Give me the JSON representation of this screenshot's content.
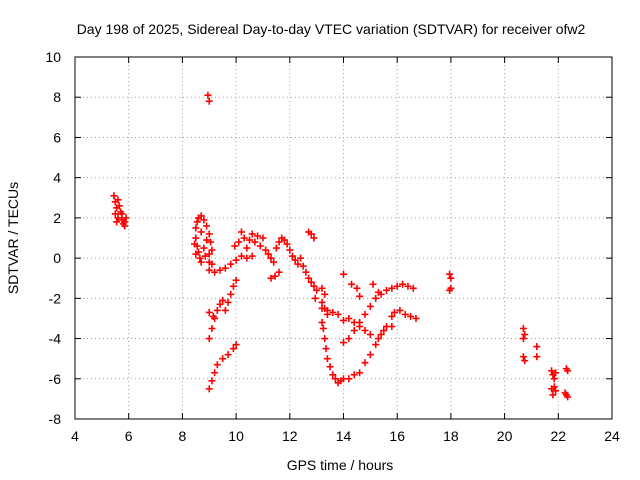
{
  "chart_data": {
    "type": "scatter",
    "title": "Day 198 of 2025, Sidereal Day-to-day VTEC variation (SDTVAR) for receiver ofw2",
    "xlabel": "GPS time / hours",
    "ylabel": "SDTVAR / TECUs",
    "xlim": [
      4,
      24
    ],
    "ylim": [
      -8,
      10
    ],
    "xticks": [
      4,
      6,
      8,
      10,
      12,
      14,
      16,
      18,
      20,
      22,
      24
    ],
    "yticks": [
      -8,
      -6,
      -4,
      -2,
      0,
      2,
      4,
      6,
      8,
      10
    ],
    "grid": true,
    "marker": "+",
    "color": "#ff0000",
    "series": [
      {
        "name": "SDTVAR",
        "points": [
          [
            5.45,
            3.1
          ],
          [
            5.5,
            2.8
          ],
          [
            5.55,
            2.5
          ],
          [
            5.5,
            2.2
          ],
          [
            5.6,
            2.0
          ],
          [
            5.55,
            1.8
          ],
          [
            5.7,
            2.3
          ],
          [
            5.75,
            1.9
          ],
          [
            5.8,
            1.7
          ],
          [
            5.85,
            1.6
          ],
          [
            5.9,
            2.0
          ],
          [
            5.65,
            2.6
          ],
          [
            5.6,
            2.9
          ],
          [
            5.75,
            2.2
          ],
          [
            5.85,
            1.8
          ],
          [
            8.95,
            8.1
          ],
          [
            9.0,
            7.8
          ],
          [
            8.5,
            1.5
          ],
          [
            8.55,
            1.8
          ],
          [
            8.6,
            2.0
          ],
          [
            8.7,
            2.1
          ],
          [
            8.8,
            1.9
          ],
          [
            8.9,
            1.6
          ],
          [
            9.0,
            1.2
          ],
          [
            9.05,
            0.8
          ],
          [
            9.1,
            0.4
          ],
          [
            8.5,
            1.0
          ],
          [
            8.55,
            0.6
          ],
          [
            8.6,
            0.3
          ],
          [
            8.65,
            0.0
          ],
          [
            8.7,
            -0.2
          ],
          [
            8.8,
            0.5
          ],
          [
            8.9,
            0.9
          ],
          [
            9.0,
            0.2
          ],
          [
            9.1,
            -0.3
          ],
          [
            8.5,
            0.2
          ],
          [
            8.45,
            0.7
          ],
          [
            8.7,
            1.3
          ],
          [
            8.85,
            0.1
          ],
          [
            9.0,
            -0.2
          ],
          [
            9.0,
            -0.6
          ],
          [
            9.2,
            -0.7
          ],
          [
            9.4,
            -0.6
          ],
          [
            9.6,
            -0.5
          ],
          [
            9.8,
            -0.3
          ],
          [
            10.0,
            -0.1
          ],
          [
            10.2,
            0.1
          ],
          [
            10.4,
            0.0
          ],
          [
            10.6,
            0.1
          ],
          [
            9.95,
            0.6
          ],
          [
            10.1,
            0.8
          ],
          [
            10.2,
            1.3
          ],
          [
            10.3,
            1.0
          ],
          [
            10.4,
            0.5
          ],
          [
            10.5,
            0.9
          ],
          [
            10.6,
            1.2
          ],
          [
            10.7,
            0.8
          ],
          [
            10.8,
            1.1
          ],
          [
            10.9,
            0.6
          ],
          [
            11.0,
            1.0
          ],
          [
            11.1,
            0.4
          ],
          [
            11.2,
            0.2
          ],
          [
            11.3,
            0.0
          ],
          [
            11.4,
            -0.2
          ],
          [
            11.5,
            0.5
          ],
          [
            11.6,
            0.8
          ],
          [
            11.7,
            1.0
          ],
          [
            11.8,
            0.9
          ],
          [
            11.9,
            0.7
          ],
          [
            12.0,
            0.4
          ],
          [
            12.1,
            0.1
          ],
          [
            12.2,
            -0.1
          ],
          [
            12.3,
            -0.3
          ],
          [
            12.4,
            0.0
          ],
          [
            12.5,
            -0.4
          ],
          [
            12.6,
            -0.7
          ],
          [
            12.7,
            -1.0
          ],
          [
            12.8,
            -1.2
          ],
          [
            12.9,
            -1.4
          ],
          [
            13.0,
            -1.6
          ],
          [
            11.3,
            -1.0
          ],
          [
            11.45,
            -0.9
          ],
          [
            11.6,
            -0.7
          ],
          [
            12.7,
            1.3
          ],
          [
            12.8,
            1.2
          ],
          [
            12.9,
            1.0
          ],
          [
            12.95,
            -2.0
          ],
          [
            9.0,
            -4.0
          ],
          [
            9.1,
            -3.5
          ],
          [
            9.2,
            -3.0
          ],
          [
            9.3,
            -2.6
          ],
          [
            9.4,
            -2.3
          ],
          [
            9.5,
            -2.1
          ],
          [
            9.6,
            -2.6
          ],
          [
            9.7,
            -2.2
          ],
          [
            9.8,
            -1.8
          ],
          [
            9.9,
            -1.4
          ],
          [
            10.0,
            -1.1
          ],
          [
            9.0,
            -2.7
          ],
          [
            9.15,
            -2.9
          ],
          [
            9.0,
            -6.5
          ],
          [
            9.1,
            -6.1
          ],
          [
            9.2,
            -5.7
          ],
          [
            9.3,
            -5.3
          ],
          [
            9.5,
            -5.0
          ],
          [
            9.7,
            -4.8
          ],
          [
            9.9,
            -4.5
          ],
          [
            10.0,
            -4.3
          ],
          [
            13.2,
            -1.5
          ],
          [
            13.3,
            -1.8
          ],
          [
            13.2,
            -2.2
          ],
          [
            13.3,
            -2.5
          ],
          [
            13.4,
            -2.8
          ],
          [
            13.2,
            -3.2
          ],
          [
            13.25,
            -3.5
          ],
          [
            13.3,
            -4.0
          ],
          [
            13.35,
            -4.5
          ],
          [
            13.4,
            -5.0
          ],
          [
            13.5,
            -5.4
          ],
          [
            13.6,
            -5.8
          ],
          [
            13.7,
            -6.0
          ],
          [
            13.8,
            -6.2
          ],
          [
            13.9,
            -6.1
          ],
          [
            14.0,
            -6.0
          ],
          [
            14.2,
            -6.0
          ],
          [
            14.4,
            -5.8
          ],
          [
            14.6,
            -5.7
          ],
          [
            14.8,
            -5.2
          ],
          [
            15.0,
            -4.8
          ],
          [
            15.2,
            -4.3
          ],
          [
            15.4,
            -3.8
          ],
          [
            15.6,
            -3.4
          ],
          [
            15.8,
            -2.9
          ],
          [
            13.2,
            -2.5
          ],
          [
            13.4,
            -2.6
          ],
          [
            13.6,
            -2.7
          ],
          [
            13.8,
            -2.8
          ],
          [
            14.0,
            -3.1
          ],
          [
            14.2,
            -3.0
          ],
          [
            14.4,
            -3.2
          ],
          [
            14.6,
            -3.4
          ],
          [
            14.8,
            -3.6
          ],
          [
            15.0,
            -3.8
          ],
          [
            14.0,
            -4.2
          ],
          [
            14.2,
            -4.0
          ],
          [
            14.4,
            -3.6
          ],
          [
            14.6,
            -3.2
          ],
          [
            14.8,
            -2.8
          ],
          [
            15.0,
            -2.4
          ],
          [
            15.2,
            -2.0
          ],
          [
            15.4,
            -1.8
          ],
          [
            15.6,
            -1.6
          ],
          [
            15.8,
            -1.5
          ],
          [
            16.0,
            -1.4
          ],
          [
            16.2,
            -1.3
          ],
          [
            16.4,
            -1.4
          ],
          [
            16.6,
            -1.5
          ],
          [
            15.9,
            -2.7
          ],
          [
            16.1,
            -2.6
          ],
          [
            16.3,
            -2.8
          ],
          [
            16.5,
            -2.9
          ],
          [
            16.7,
            -3.0
          ],
          [
            14.0,
            -0.8
          ],
          [
            14.3,
            -1.3
          ],
          [
            14.5,
            -1.5
          ],
          [
            14.6,
            -1.9
          ],
          [
            15.1,
            -1.3
          ],
          [
            15.3,
            -1.7
          ],
          [
            15.8,
            -3.4
          ],
          [
            15.3,
            -4.0
          ],
          [
            15.5,
            -3.6
          ],
          [
            17.95,
            -0.8
          ],
          [
            17.95,
            -1.6
          ],
          [
            18.0,
            -1.0
          ],
          [
            18.0,
            -1.5
          ],
          [
            20.7,
            -3.5
          ],
          [
            20.75,
            -3.8
          ],
          [
            20.7,
            -4.0
          ],
          [
            20.7,
            -4.9
          ],
          [
            20.75,
            -5.1
          ],
          [
            21.2,
            -4.4
          ],
          [
            21.2,
            -4.9
          ],
          [
            21.75,
            -5.6
          ],
          [
            21.8,
            -5.8
          ],
          [
            21.85,
            -6.0
          ],
          [
            21.9,
            -5.7
          ],
          [
            21.75,
            -6.5
          ],
          [
            21.8,
            -6.8
          ],
          [
            21.9,
            -6.6
          ],
          [
            21.85,
            -6.4
          ],
          [
            22.3,
            -5.5
          ],
          [
            22.35,
            -5.6
          ],
          [
            22.3,
            -6.8
          ],
          [
            22.35,
            -6.9
          ],
          [
            22.25,
            -6.7
          ]
        ]
      }
    ]
  }
}
